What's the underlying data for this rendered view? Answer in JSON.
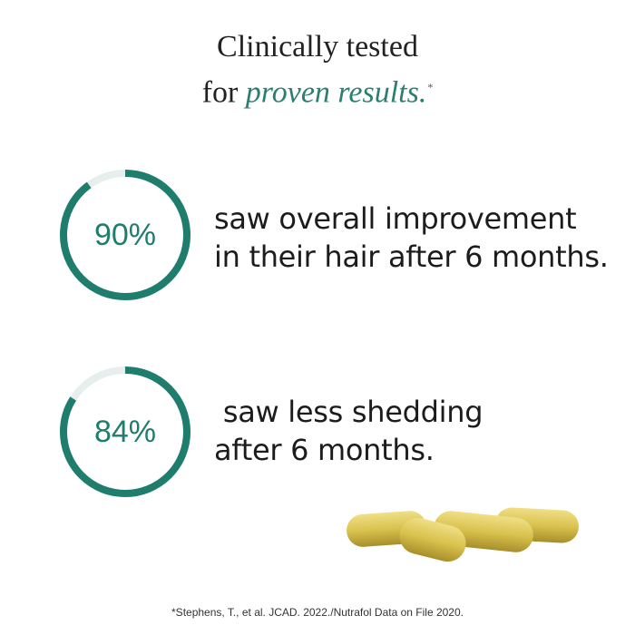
{
  "headline": {
    "line1": "Clinically tested",
    "line2_prefix": "for ",
    "line2_emphasis": "proven results.",
    "asterisk": "*"
  },
  "stats": [
    {
      "percent_label": "90%",
      "value": 90,
      "line1": "saw overall improvement",
      "line2": "in their hair after 6 months."
    },
    {
      "percent_label": "84%",
      "value": 84,
      "line1": " saw less shedding",
      "line2": "after 6 months."
    }
  ],
  "colors": {
    "accent": "#1e7d6d",
    "ring_track": "#e6efed",
    "capsule": "#d9c24e"
  },
  "footnote": "*Stephens, T., et al. JCAD. 2022./Nutrafol Data on File 2020."
}
